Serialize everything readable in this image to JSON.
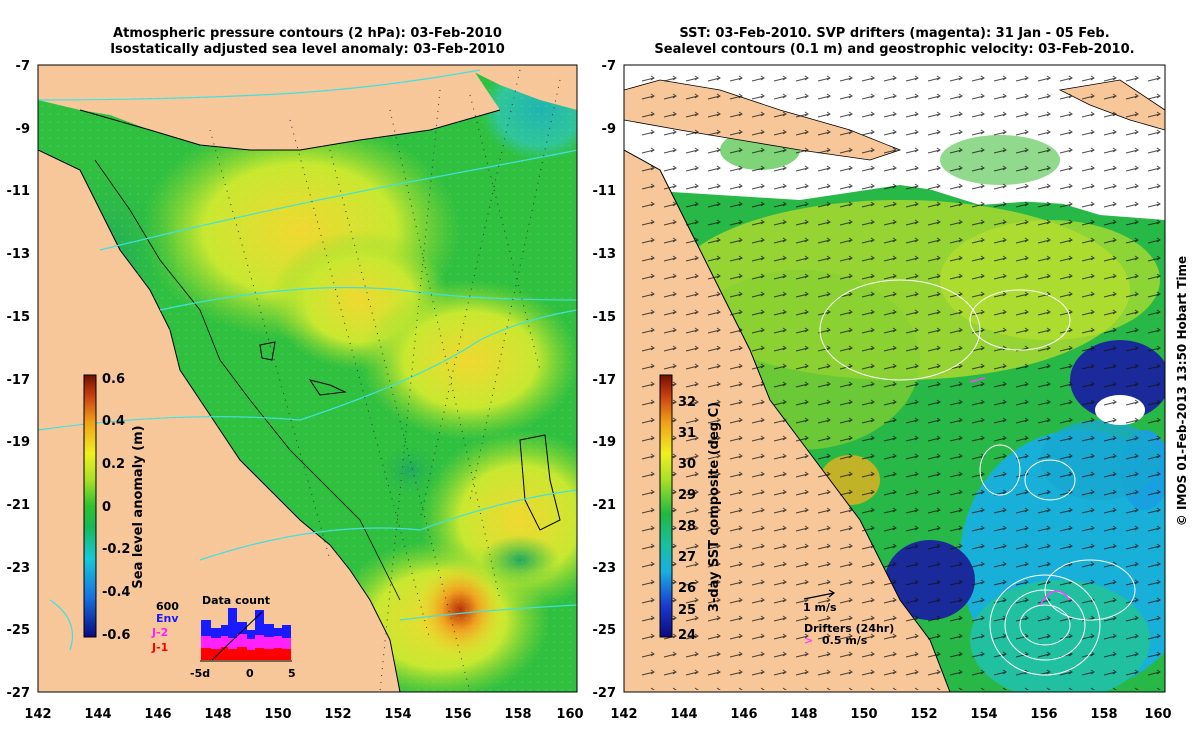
{
  "left_panel": {
    "title_line1": "Atmospheric pressure contours (2 hPa): 03-Feb-2010",
    "title_line2": "Isostatically adjusted sea level anomaly: 03-Feb-2010",
    "colorbar_label": "Sea level anomaly (m)",
    "colorbar_ticks": [
      "0.6",
      "0.4",
      "0.2",
      "0",
      "-0.2",
      "-0.4",
      "-0.6"
    ],
    "inset": {
      "title": "Data count",
      "y_max_label": "600",
      "legend": [
        "Env",
        "J-2",
        "J-1"
      ],
      "legend_colors": [
        "#1a1aff",
        "#ff22ff",
        "#ff0000"
      ],
      "x_left": "-5d",
      "x_mid": "0",
      "x_right": "5"
    }
  },
  "right_panel": {
    "title_line1": "SST: 03-Feb-2010. SVP drifters (magenta): 31 Jan - 05 Feb.",
    "title_line2": "Sealevel contours (0.1 m) and geostrophic velocity: 03-Feb-2010.",
    "colorbar_label": "3-day SST composite (deg C)",
    "colorbar_ticks": [
      "32",
      "31",
      "30",
      "29",
      "28",
      "27",
      "26",
      "25",
      "24"
    ],
    "arrow_scale_label": "1 m/s",
    "drifter_title": "Drifters (24hr)",
    "drifter_scale_label": "0.5 m/s"
  },
  "axes": {
    "x_ticks": [
      "142",
      "144",
      "146",
      "148",
      "150",
      "152",
      "154",
      "156",
      "158",
      "160"
    ],
    "y_ticks": [
      "-7",
      "-9",
      "-11",
      "-13",
      "-15",
      "-17",
      "-19",
      "-21",
      "-23",
      "-25",
      "-27"
    ]
  },
  "credit": "© IMOS 01-Feb-2013 13:50 Hobart Time",
  "colors": {
    "land": "#f7c79a",
    "ocean_green": "#22c04a",
    "ocean_yellowgreen": "#b8e830",
    "ocean_cyan": "#18b8d8",
    "deep_blue": "#1a1a9a",
    "pressure_contour": "#40e0e0"
  }
}
